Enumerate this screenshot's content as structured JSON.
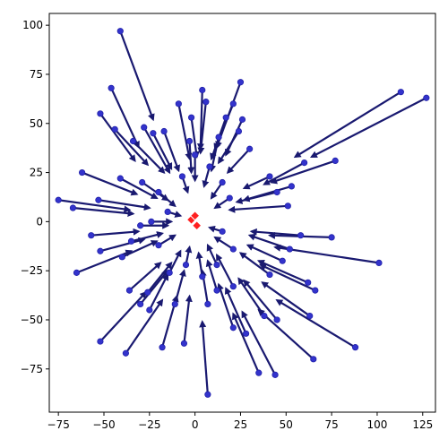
{
  "chart_data": {
    "type": "scatter",
    "title": "",
    "xlabel": "",
    "ylabel": "",
    "xlim": [
      -80,
      132
    ],
    "ylim": [
      -97,
      106
    ],
    "grid": false,
    "xticks": [
      "−75",
      "−50",
      "−25",
      "0",
      "25",
      "50",
      "75",
      "100",
      "125"
    ],
    "xtick_values": [
      -75,
      -50,
      -25,
      0,
      25,
      50,
      75,
      100,
      125
    ],
    "yticks": [
      "−75",
      "−50",
      "−25",
      "0",
      "25",
      "50",
      "75",
      "100"
    ],
    "ytick_values": [
      -75,
      -50,
      -25,
      0,
      25,
      50,
      75,
      100
    ],
    "colors": {
      "arrow": "#191970",
      "point": "#3333cc",
      "center": "#ff2020"
    },
    "centers": [
      {
        "x": -2,
        "y": 1
      },
      {
        "x": 0,
        "y": 3
      },
      {
        "x": 1,
        "y": -2
      }
    ],
    "vectors": [
      {
        "x": -41,
        "y": 97,
        "dx": 18,
        "dy": -45
      },
      {
        "x": -46,
        "y": 68,
        "dx": 15,
        "dy": -30
      },
      {
        "x": -52,
        "y": 55,
        "dx": 19,
        "dy": -24
      },
      {
        "x": -44,
        "y": 47,
        "dx": 18,
        "dy": -18
      },
      {
        "x": -34,
        "y": 41,
        "dx": 17,
        "dy": -16
      },
      {
        "x": -28,
        "y": 48,
        "dx": 14,
        "dy": -23
      },
      {
        "x": -23,
        "y": 45,
        "dx": 10,
        "dy": -18
      },
      {
        "x": -17,
        "y": 46,
        "dx": 8,
        "dy": -20
      },
      {
        "x": -9,
        "y": 60,
        "dx": 6,
        "dy": -28
      },
      {
        "x": -2,
        "y": 53,
        "dx": 3,
        "dy": -20
      },
      {
        "x": 4,
        "y": 67,
        "dx": -1,
        "dy": -30
      },
      {
        "x": 6,
        "y": 61,
        "dx": -3,
        "dy": -26
      },
      {
        "x": 13,
        "y": 43,
        "dx": -4,
        "dy": -17
      },
      {
        "x": 17,
        "y": 53,
        "dx": -8,
        "dy": -21
      },
      {
        "x": 21,
        "y": 60,
        "dx": -10,
        "dy": -23
      },
      {
        "x": 26,
        "y": 52,
        "dx": -9,
        "dy": -18
      },
      {
        "x": 25,
        "y": 71,
        "dx": -13,
        "dy": -33
      },
      {
        "x": 24,
        "y": 46,
        "dx": -11,
        "dy": -16
      },
      {
        "x": 30,
        "y": 37,
        "dx": -12,
        "dy": -12
      },
      {
        "x": 113,
        "y": 66,
        "dx": -58,
        "dy": -33
      },
      {
        "x": 127,
        "y": 63,
        "dx": -63,
        "dy": -30
      },
      {
        "x": 77,
        "y": 31,
        "dx": -35,
        "dy": -11
      },
      {
        "x": 60,
        "y": 30,
        "dx": -22,
        "dy": -11
      },
      {
        "x": 41,
        "y": 23,
        "dx": -14,
        "dy": -6
      },
      {
        "x": 53,
        "y": 18,
        "dx": -26,
        "dy": -7
      },
      {
        "x": 45,
        "y": 15,
        "dx": -22,
        "dy": -5
      },
      {
        "x": 51,
        "y": 8,
        "dx": -32,
        "dy": -2
      },
      {
        "x": 58,
        "y": -7,
        "dx": -27,
        "dy": 2
      },
      {
        "x": 75,
        "y": -8,
        "dx": -34,
        "dy": 1
      },
      {
        "x": 101,
        "y": -21,
        "dx": -57,
        "dy": 8
      },
      {
        "x": 52,
        "y": -14,
        "dx": -22,
        "dy": 7
      },
      {
        "x": 48,
        "y": -20,
        "dx": -19,
        "dy": 8
      },
      {
        "x": 62,
        "y": -31,
        "dx": -27,
        "dy": 11
      },
      {
        "x": 66,
        "y": -35,
        "dx": -30,
        "dy": 13
      },
      {
        "x": 63,
        "y": -48,
        "dx": -26,
        "dy": 17
      },
      {
        "x": 65,
        "y": -70,
        "dx": -30,
        "dy": 25
      },
      {
        "x": 88,
        "y": -64,
        "dx": -43,
        "dy": 24
      },
      {
        "x": 45,
        "y": -50,
        "dx": -18,
        "dy": 20
      },
      {
        "x": 41,
        "y": -27,
        "dx": -16,
        "dy": 11
      },
      {
        "x": 38,
        "y": -48,
        "dx": -14,
        "dy": 19
      },
      {
        "x": 35,
        "y": -77,
        "dx": -14,
        "dy": 30
      },
      {
        "x": 44,
        "y": -78,
        "dx": -18,
        "dy": 32
      },
      {
        "x": 28,
        "y": -57,
        "dx": -11,
        "dy": 23
      },
      {
        "x": 21,
        "y": -54,
        "dx": -8,
        "dy": 22
      },
      {
        "x": 21,
        "y": -33,
        "dx": -9,
        "dy": 16
      },
      {
        "x": 12,
        "y": -35,
        "dx": -5,
        "dy": 15
      },
      {
        "x": 7,
        "y": -88,
        "dx": -3,
        "dy": 37
      },
      {
        "x": 7,
        "y": -42,
        "dx": -3,
        "dy": 17
      },
      {
        "x": -6,
        "y": -62,
        "dx": 3,
        "dy": 24
      },
      {
        "x": -11,
        "y": -42,
        "dx": 5,
        "dy": 17
      },
      {
        "x": -18,
        "y": -64,
        "dx": 8,
        "dy": 26
      },
      {
        "x": -25,
        "y": -45,
        "dx": 10,
        "dy": 18
      },
      {
        "x": -26,
        "y": -36,
        "dx": 13,
        "dy": 15
      },
      {
        "x": -36,
        "y": -35,
        "dx": 17,
        "dy": 14
      },
      {
        "x": -30,
        "y": -42,
        "dx": 15,
        "dy": 17
      },
      {
        "x": -38,
        "y": -67,
        "dx": 20,
        "dy": 27
      },
      {
        "x": -52,
        "y": -61,
        "dx": 25,
        "dy": 25
      },
      {
        "x": -65,
        "y": -26,
        "dx": 30,
        "dy": 11
      },
      {
        "x": -52,
        "y": -15,
        "dx": 24,
        "dy": 6
      },
      {
        "x": -40,
        "y": -18,
        "dx": 19,
        "dy": 8
      },
      {
        "x": -35,
        "y": -10,
        "dx": 17,
        "dy": 4
      },
      {
        "x": -57,
        "y": -7,
        "dx": 26,
        "dy": 2
      },
      {
        "x": -30,
        "y": -2,
        "dx": 15,
        "dy": 0
      },
      {
        "x": -24,
        "y": 0,
        "dx": 11,
        "dy": 0
      },
      {
        "x": -53,
        "y": 11,
        "dx": 28,
        "dy": -4
      },
      {
        "x": -67,
        "y": 7,
        "dx": 33,
        "dy": -3
      },
      {
        "x": -75,
        "y": 11,
        "dx": 39,
        "dy": -5
      },
      {
        "x": -62,
        "y": 25,
        "dx": 30,
        "dy": -11
      },
      {
        "x": -41,
        "y": 22,
        "dx": 20,
        "dy": -10
      },
      {
        "x": -29,
        "y": 20,
        "dx": 14,
        "dy": -9
      },
      {
        "x": -20,
        "y": 15,
        "dx": 9,
        "dy": -7
      },
      {
        "x": -7,
        "y": 23,
        "dx": 3,
        "dy": -8
      },
      {
        "x": -3,
        "y": 41,
        "dx": 1,
        "dy": -16
      },
      {
        "x": 0,
        "y": 34,
        "dx": 0,
        "dy": -13
      },
      {
        "x": 8,
        "y": 28,
        "dx": -3,
        "dy": -10
      },
      {
        "x": 15,
        "y": 20,
        "dx": -6,
        "dy": -8
      },
      {
        "x": 19,
        "y": 12,
        "dx": -8,
        "dy": -5
      },
      {
        "x": 15,
        "y": -5,
        "dx": -7,
        "dy": 2
      },
      {
        "x": 21,
        "y": -14,
        "dx": -10,
        "dy": 6
      },
      {
        "x": 12,
        "y": -22,
        "dx": -5,
        "dy": 10
      },
      {
        "x": 4,
        "y": -28,
        "dx": -2,
        "dy": 12
      },
      {
        "x": -5,
        "y": -22,
        "dx": 2,
        "dy": 9
      },
      {
        "x": -14,
        "y": -26,
        "dx": 6,
        "dy": 11
      },
      {
        "x": -20,
        "y": -12,
        "dx": 9,
        "dy": 5
      },
      {
        "x": -15,
        "y": 5,
        "dx": 7,
        "dy": -2
      }
    ]
  }
}
